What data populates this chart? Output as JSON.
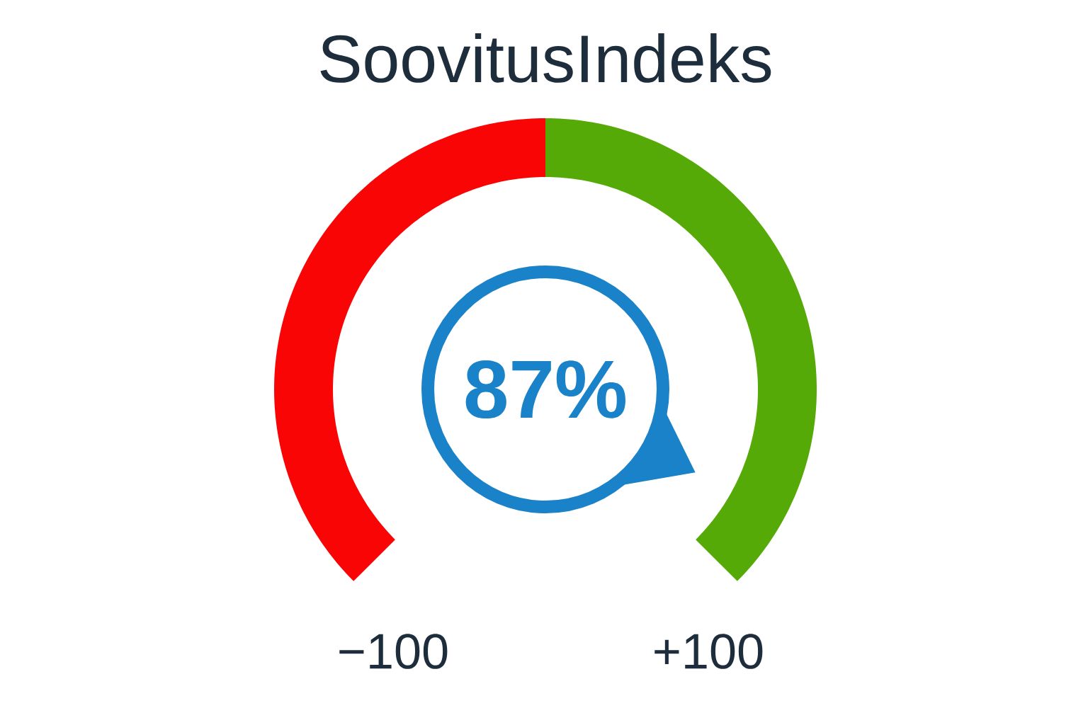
{
  "chart_data": {
    "type": "donut",
    "title": "SoovitusIndeks",
    "categories": [
      null,
      null
    ],
    "values": [
      50,
      50
    ],
    "colors": [
      "#fa0505",
      "#55aa08"
    ],
    "annotations": [
      "87%",
      "−100",
      "+100"
    ]
  }
}
